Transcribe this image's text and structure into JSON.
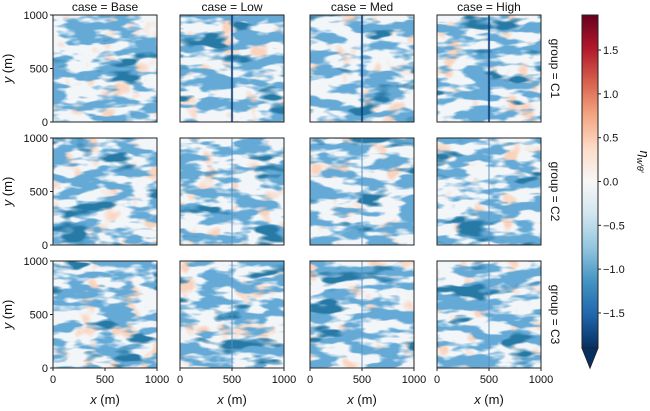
{
  "chart_data": {
    "type": "heatmap",
    "columns": [
      "case = Base",
      "case = Low",
      "case = Med",
      "case = High"
    ],
    "rows": [
      "group = C1",
      "group = C2",
      "group = C3"
    ],
    "xlabel_var": "x",
    "xlabel_unit": " (m)",
    "ylabel_var": "y",
    "ylabel_unit": " (m)",
    "x_ticks": [
      "0",
      "500",
      "1000"
    ],
    "y_ticks": [
      "0",
      "500",
      "1000"
    ],
    "x_range": [
      0,
      1000
    ],
    "y_range": [
      0,
      1000
    ],
    "colorbar": {
      "label": "η_{w'θ'}",
      "label_main": "η",
      "label_sub": "w′θ′",
      "range": [
        -1.9,
        1.9
      ],
      "extend": "min",
      "colormap": "RdBu_r",
      "ticks": [
        "1.5",
        "1.0",
        "0.5",
        "0.0",
        "−0.5",
        "−1.0",
        "−1.5"
      ],
      "tick_values": [
        1.5,
        1.0,
        0.5,
        0.0,
        -0.5,
        -1.0,
        -1.5
      ],
      "colors": [
        "#053061",
        "#2166ac",
        "#4393c3",
        "#92c5de",
        "#d1e5f0",
        "#f7f7f7",
        "#fddbc7",
        "#f4a582",
        "#d6604d",
        "#b2182b",
        "#67001f"
      ]
    },
    "stripe_x": [
      null,
      500,
      500,
      500
    ]
  }
}
